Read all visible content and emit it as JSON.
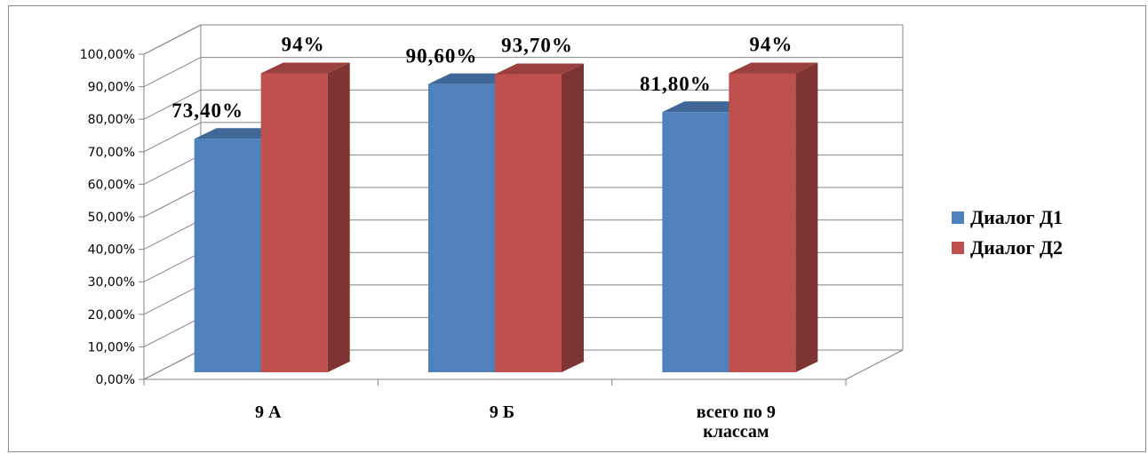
{
  "chart_data": {
    "type": "bar",
    "categories": [
      "9 А",
      "9 Б",
      "всего по 9 классам"
    ],
    "category_lines": [
      [
        "9 А"
      ],
      [
        "9 Б"
      ],
      [
        "всего по 9",
        "классам"
      ]
    ],
    "series": [
      {
        "name": "Диалог Д1",
        "values": [
          73.4,
          90.6,
          81.8
        ],
        "labels": [
          "73,40%",
          "90,60%",
          "81,80%"
        ],
        "color": "#4f81bd"
      },
      {
        "name": "Диалог Д2",
        "values": [
          94,
          93.7,
          94
        ],
        "labels": [
          "94%",
          "93,70%",
          "94%"
        ],
        "color": "#c0504d"
      }
    ],
    "ylim": [
      0,
      100
    ],
    "yticks": [
      "0,00%",
      "10,00%",
      "20,00%",
      "30,00%",
      "40,00%",
      "50,00%",
      "60,00%",
      "70,00%",
      "80,00%",
      "90,00%",
      "100,00%"
    ],
    "grid": true,
    "legend_position": "right",
    "three_d": true
  }
}
